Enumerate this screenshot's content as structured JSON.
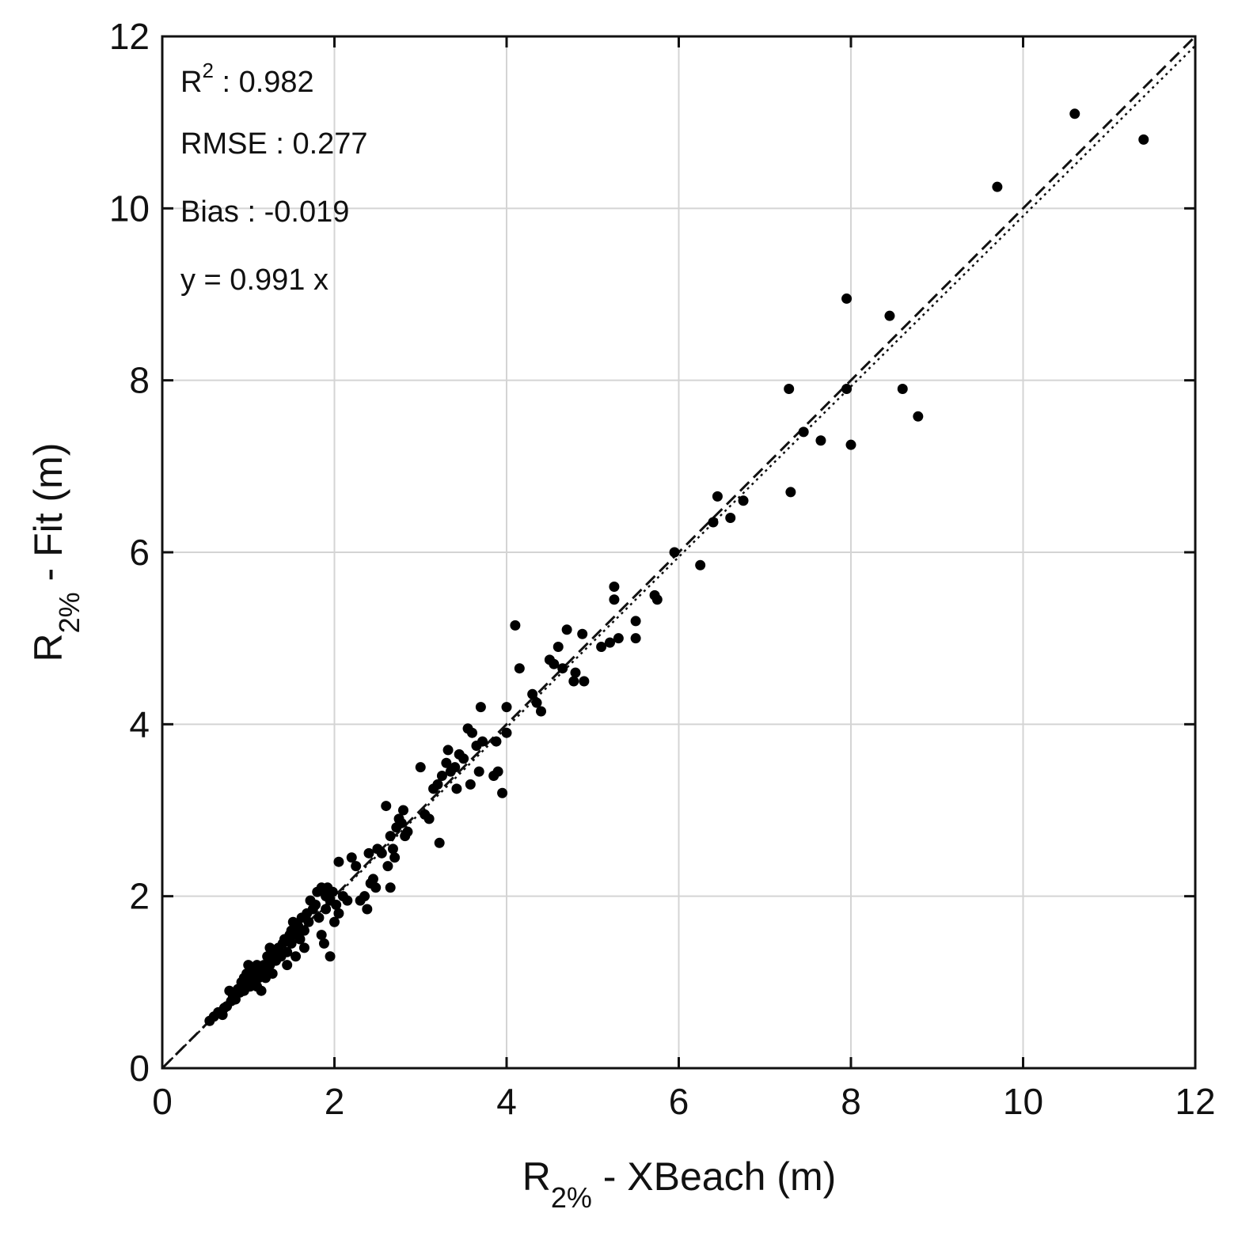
{
  "chart_data": {
    "type": "scatter",
    "xlabel": {
      "main": "R",
      "sub": "2%",
      "rest": " - XBeach (m)"
    },
    "ylabel": {
      "main": "R",
      "sub": "2%",
      "rest": " - Fit (m)"
    },
    "xlim": [
      0,
      12
    ],
    "ylim": [
      0,
      12
    ],
    "xticks": [
      "0",
      "2",
      "4",
      "6",
      "8",
      "10",
      "12"
    ],
    "yticks": [
      "0",
      "2",
      "4",
      "6",
      "8",
      "10",
      "12"
    ],
    "grid": true,
    "stats": {
      "r2_label": "R",
      "r2_sup": "2",
      "r2_value": " : 0.982",
      "rmse": "RMSE : 0.277",
      "bias": "Bias : -0.019",
      "fit": "y = 0.991 x"
    },
    "lines": [
      {
        "style": "dashed",
        "slope": 1.0
      },
      {
        "style": "dotted",
        "slope": 0.991
      }
    ],
    "points": [
      [
        0.55,
        0.55
      ],
      [
        0.6,
        0.6
      ],
      [
        0.65,
        0.65
      ],
      [
        0.7,
        0.62
      ],
      [
        0.72,
        0.7
      ],
      [
        0.75,
        0.72
      ],
      [
        0.78,
        0.9
      ],
      [
        0.8,
        0.78
      ],
      [
        0.82,
        0.85
      ],
      [
        0.85,
        0.8
      ],
      [
        0.88,
        0.92
      ],
      [
        0.9,
        0.88
      ],
      [
        0.92,
        1.0
      ],
      [
        0.95,
        1.05
      ],
      [
        0.95,
        0.9
      ],
      [
        0.98,
        1.1
      ],
      [
        1.0,
        1.0
      ],
      [
        1.0,
        1.2
      ],
      [
        1.02,
        0.95
      ],
      [
        1.05,
        1.1
      ],
      [
        1.05,
        1.15
      ],
      [
        1.08,
        1.0
      ],
      [
        1.1,
        1.2
      ],
      [
        1.1,
        0.95
      ],
      [
        1.12,
        1.05
      ],
      [
        1.15,
        1.1
      ],
      [
        1.15,
        0.9
      ],
      [
        1.18,
        1.2
      ],
      [
        1.2,
        1.15
      ],
      [
        1.2,
        1.05
      ],
      [
        1.22,
        1.3
      ],
      [
        1.25,
        1.4
      ],
      [
        1.25,
        1.2
      ],
      [
        1.28,
        1.1
      ],
      [
        1.3,
        1.35
      ],
      [
        1.32,
        1.25
      ],
      [
        1.35,
        1.4
      ],
      [
        1.38,
        1.3
      ],
      [
        1.4,
        1.45
      ],
      [
        1.42,
        1.5
      ],
      [
        1.45,
        1.35
      ],
      [
        1.45,
        1.2
      ],
      [
        1.48,
        1.55
      ],
      [
        1.5,
        1.6
      ],
      [
        1.5,
        1.45
      ],
      [
        1.52,
        1.7
      ],
      [
        1.55,
        1.55
      ],
      [
        1.55,
        1.3
      ],
      [
        1.58,
        1.65
      ],
      [
        1.6,
        1.5
      ],
      [
        1.62,
        1.75
      ],
      [
        1.65,
        1.6
      ],
      [
        1.65,
        1.4
      ],
      [
        1.68,
        1.8
      ],
      [
        1.7,
        1.7
      ],
      [
        1.72,
        1.95
      ],
      [
        1.75,
        1.85
      ],
      [
        1.78,
        1.9
      ],
      [
        1.8,
        2.05
      ],
      [
        1.82,
        1.75
      ],
      [
        1.85,
        2.1
      ],
      [
        1.85,
        1.55
      ],
      [
        1.88,
        1.45
      ],
      [
        1.9,
        2.0
      ],
      [
        1.9,
        1.85
      ],
      [
        1.92,
        2.1
      ],
      [
        1.95,
        1.95
      ],
      [
        1.95,
        1.3
      ],
      [
        1.98,
        2.05
      ],
      [
        2.0,
        1.7
      ],
      [
        2.02,
        1.9
      ],
      [
        2.05,
        2.4
      ],
      [
        2.05,
        1.8
      ],
      [
        2.1,
        2.0
      ],
      [
        2.15,
        1.95
      ],
      [
        2.2,
        2.45
      ],
      [
        2.25,
        2.35
      ],
      [
        2.3,
        1.95
      ],
      [
        2.35,
        2.0
      ],
      [
        2.38,
        1.85
      ],
      [
        2.4,
        2.5
      ],
      [
        2.42,
        2.15
      ],
      [
        2.45,
        2.2
      ],
      [
        2.48,
        2.1
      ],
      [
        2.5,
        2.55
      ],
      [
        2.55,
        2.5
      ],
      [
        2.6,
        3.05
      ],
      [
        2.62,
        2.35
      ],
      [
        2.65,
        2.7
      ],
      [
        2.65,
        2.1
      ],
      [
        2.68,
        2.55
      ],
      [
        2.7,
        2.45
      ],
      [
        2.72,
        2.8
      ],
      [
        2.75,
        2.9
      ],
      [
        2.78,
        2.85
      ],
      [
        2.8,
        3.0
      ],
      [
        2.82,
        2.7
      ],
      [
        2.85,
        2.75
      ],
      [
        3.0,
        3.5
      ],
      [
        3.05,
        2.95
      ],
      [
        3.1,
        2.9
      ],
      [
        3.15,
        3.25
      ],
      [
        3.2,
        3.3
      ],
      [
        3.22,
        2.62
      ],
      [
        3.25,
        3.4
      ],
      [
        3.3,
        3.55
      ],
      [
        3.32,
        3.7
      ],
      [
        3.35,
        3.45
      ],
      [
        3.4,
        3.5
      ],
      [
        3.42,
        3.25
      ],
      [
        3.45,
        3.65
      ],
      [
        3.5,
        3.6
      ],
      [
        3.55,
        3.95
      ],
      [
        3.58,
        3.3
      ],
      [
        3.6,
        3.9
      ],
      [
        3.65,
        3.75
      ],
      [
        3.68,
        3.45
      ],
      [
        3.7,
        4.2
      ],
      [
        3.72,
        3.8
      ],
      [
        3.85,
        3.4
      ],
      [
        3.88,
        3.8
      ],
      [
        3.9,
        3.45
      ],
      [
        3.95,
        3.2
      ],
      [
        4.0,
        3.9
      ],
      [
        4.0,
        4.2
      ],
      [
        4.1,
        5.15
      ],
      [
        4.15,
        4.65
      ],
      [
        4.3,
        4.35
      ],
      [
        4.35,
        4.25
      ],
      [
        4.4,
        4.15
      ],
      [
        4.5,
        4.75
      ],
      [
        4.55,
        4.7
      ],
      [
        4.6,
        4.9
      ],
      [
        4.65,
        4.65
      ],
      [
        4.7,
        5.1
      ],
      [
        4.78,
        4.5
      ],
      [
        4.8,
        4.6
      ],
      [
        4.88,
        5.05
      ],
      [
        4.9,
        4.5
      ],
      [
        5.1,
        4.9
      ],
      [
        5.2,
        4.95
      ],
      [
        5.25,
        5.6
      ],
      [
        5.25,
        5.45
      ],
      [
        5.3,
        5.0
      ],
      [
        5.5,
        5.2
      ],
      [
        5.5,
        5.0
      ],
      [
        5.72,
        5.5
      ],
      [
        5.75,
        5.45
      ],
      [
        5.95,
        6.0
      ],
      [
        6.25,
        5.85
      ],
      [
        6.4,
        6.35
      ],
      [
        6.45,
        6.65
      ],
      [
        6.6,
        6.4
      ],
      [
        6.75,
        6.6
      ],
      [
        7.28,
        7.9
      ],
      [
        7.3,
        6.7
      ],
      [
        7.45,
        7.4
      ],
      [
        7.65,
        7.3
      ],
      [
        7.95,
        8.95
      ],
      [
        7.95,
        7.9
      ],
      [
        8.0,
        7.25
      ],
      [
        8.45,
        8.75
      ],
      [
        8.6,
        7.9
      ],
      [
        8.78,
        7.58
      ],
      [
        9.7,
        10.25
      ],
      [
        10.6,
        11.1
      ],
      [
        11.4,
        10.8
      ]
    ]
  }
}
